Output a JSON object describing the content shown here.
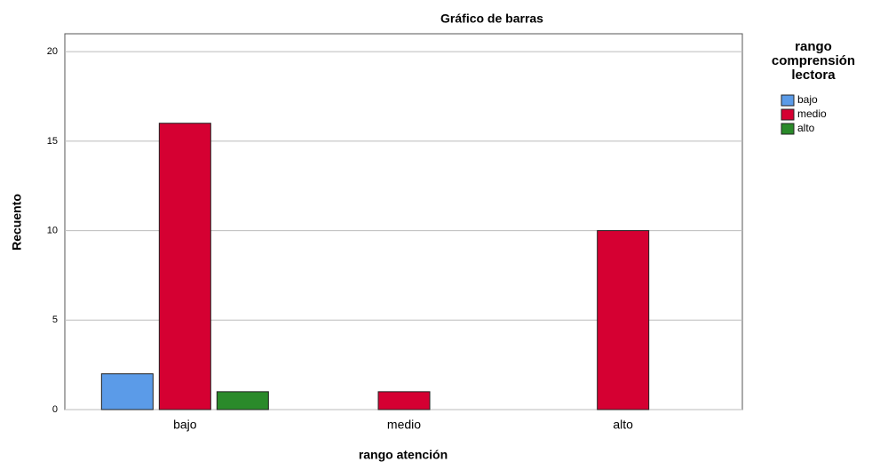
{
  "chart_data": {
    "type": "bar",
    "title": "Gráfico de barras",
    "x_label": "rango atención",
    "y_label": "Recuento",
    "legend_title": [
      "rango",
      "comprensión",
      "lectora"
    ],
    "categories": [
      "bajo",
      "medio",
      "alto"
    ],
    "series": [
      {
        "name": "bajo",
        "color": "#5b9be8",
        "values": [
          2,
          0,
          0
        ]
      },
      {
        "name": "medio",
        "color": "#d50032",
        "values": [
          16,
          1,
          10
        ]
      },
      {
        "name": "alto",
        "color": "#2a8a2a",
        "values": [
          1,
          0,
          0
        ]
      }
    ],
    "ylim": [
      0,
      21
    ],
    "yticks": [
      0,
      5,
      10,
      15,
      20
    ],
    "grid": true,
    "legend": "right"
  }
}
